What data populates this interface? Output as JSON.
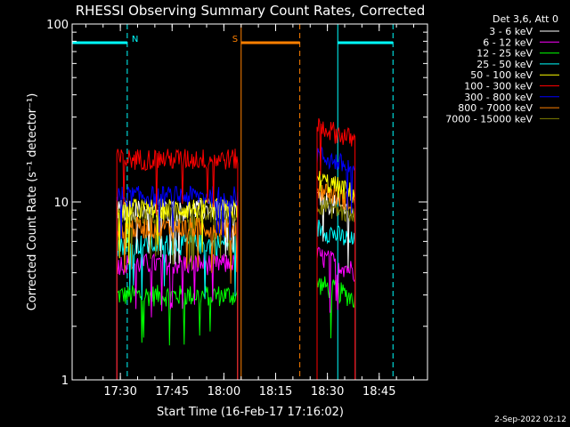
{
  "chart_data": {
    "type": "line",
    "title": "RHESSI Observing Summary Count Rates, Corrected",
    "xlabel": "Start Time (16-Feb-17 17:16:02)",
    "ylabel": "Corrected Count Rate (s⁻¹ detector⁻¹)",
    "y_scale": "log",
    "ylim": [
      1,
      100
    ],
    "xlim": [
      "17:16:02",
      "18:59:00"
    ],
    "x_ticks": [
      "17:30",
      "17:45",
      "18:00",
      "18:15",
      "18:30",
      "18:45"
    ],
    "y_ticks": [
      "1",
      "10",
      "100"
    ],
    "legend_title": "Det 3,6, Att 0",
    "legend_position": "top-right",
    "footer_date": "2-Sep-2022 02:12",
    "series": [
      {
        "name": "3 - 6 keV",
        "color": "#ffffff",
        "seg1_level": 9.0,
        "seg2_level": 10.5
      },
      {
        "name": "6 - 12 keV",
        "color": "#ff00ff",
        "seg1_level": 4.5,
        "seg2_level": 5.0
      },
      {
        "name": "12 - 25 keV",
        "color": "#00ff00",
        "seg1_level": 3.0,
        "seg2_level": 3.5
      },
      {
        "name": "25 - 50 keV",
        "color": "#00ffff",
        "seg1_level": 5.8,
        "seg2_level": 7.2
      },
      {
        "name": "50 - 100 keV",
        "color": "#ffff00",
        "seg1_level": 9.2,
        "seg2_level": 13.5
      },
      {
        "name": "100 - 300 keV",
        "color": "#ff0000",
        "seg1_level": 17.5,
        "seg2_level": 27.0
      },
      {
        "name": "300 - 800 keV",
        "color": "#0000ff",
        "seg1_level": 10.8,
        "seg2_level": 18.5
      },
      {
        "name": "800 - 7000 keV",
        "color": "#ff8000",
        "seg1_level": 7.2,
        "seg2_level": 12.0
      },
      {
        "name": "7000 - 15000 keV",
        "color": "#808000",
        "seg1_level": 8.5,
        "seg2_level": 10.0
      }
    ],
    "data_intervals": [
      [
        "17:29:00",
        "18:04:00"
      ],
      [
        "18:27:00",
        "18:38:00"
      ]
    ],
    "annotations": [
      {
        "label": "N",
        "color": "#00ffff",
        "span": [
          "17:16:02",
          "17:32:00"
        ],
        "dashed_end": "17:32:00"
      },
      {
        "label": "",
        "color": "#00ffff",
        "span": [
          "18:33:00",
          "18:49:00"
        ],
        "dashed_end": "18:49:00"
      },
      {
        "label": "S",
        "color": "#ff8000",
        "span": [
          "18:05:00",
          "18:22:00"
        ],
        "dashed_end": "18:22:00"
      }
    ]
  }
}
